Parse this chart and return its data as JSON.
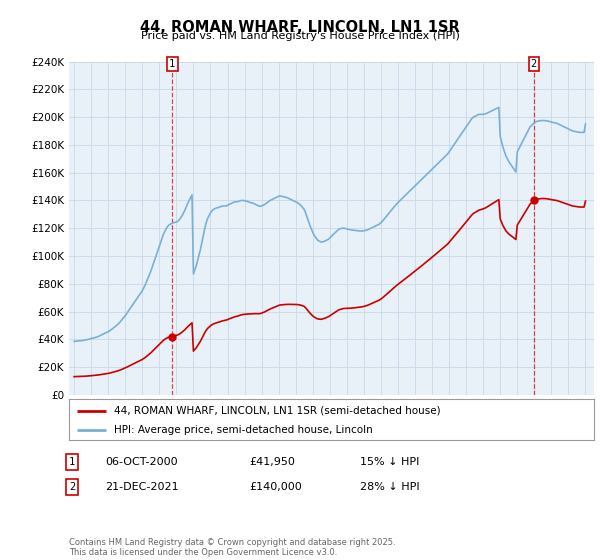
{
  "title": "44, ROMAN WHARF, LINCOLN, LN1 1SR",
  "subtitle": "Price paid vs. HM Land Registry's House Price Index (HPI)",
  "background_color": "#ffffff",
  "grid_color": "#c8d8e8",
  "plot_bg": "#e8f0f8",
  "ylim": [
    0,
    240000
  ],
  "yticks": [
    0,
    20000,
    40000,
    60000,
    80000,
    100000,
    120000,
    140000,
    160000,
    180000,
    200000,
    220000,
    240000
  ],
  "ytick_labels": [
    "£0",
    "£20K",
    "£40K",
    "£60K",
    "£80K",
    "£100K",
    "£120K",
    "£140K",
    "£160K",
    "£180K",
    "£200K",
    "£220K",
    "£240K"
  ],
  "sale1_price": 41950,
  "sale1_year": 2000.76,
  "sale2_price": 140000,
  "sale2_year": 2021.97,
  "legend_line1": "44, ROMAN WHARF, LINCOLN, LN1 1SR (semi-detached house)",
  "legend_line2": "HPI: Average price, semi-detached house, Lincoln",
  "footer": "Contains HM Land Registry data © Crown copyright and database right 2025.\nThis data is licensed under the Open Government Licence v3.0.",
  "hpi_years": [
    1995.0,
    1995.083,
    1995.167,
    1995.25,
    1995.333,
    1995.417,
    1995.5,
    1995.583,
    1995.667,
    1995.75,
    1995.833,
    1995.917,
    1996.0,
    1996.083,
    1996.167,
    1996.25,
    1996.333,
    1996.417,
    1996.5,
    1996.583,
    1996.667,
    1996.75,
    1996.833,
    1996.917,
    1997.0,
    1997.083,
    1997.167,
    1997.25,
    1997.333,
    1997.417,
    1997.5,
    1997.583,
    1997.667,
    1997.75,
    1997.833,
    1997.917,
    1998.0,
    1998.083,
    1998.167,
    1998.25,
    1998.333,
    1998.417,
    1998.5,
    1998.583,
    1998.667,
    1998.75,
    1998.833,
    1998.917,
    1999.0,
    1999.083,
    1999.167,
    1999.25,
    1999.333,
    1999.417,
    1999.5,
    1999.583,
    1999.667,
    1999.75,
    1999.833,
    1999.917,
    2000.0,
    2000.083,
    2000.167,
    2000.25,
    2000.333,
    2000.417,
    2000.5,
    2000.583,
    2000.667,
    2000.75,
    2000.833,
    2000.917,
    2001.0,
    2001.083,
    2001.167,
    2001.25,
    2001.333,
    2001.417,
    2001.5,
    2001.583,
    2001.667,
    2001.75,
    2001.833,
    2001.917,
    2002.0,
    2002.083,
    2002.167,
    2002.25,
    2002.333,
    2002.417,
    2002.5,
    2002.583,
    2002.667,
    2002.75,
    2002.833,
    2002.917,
    2003.0,
    2003.083,
    2003.167,
    2003.25,
    2003.333,
    2003.417,
    2003.5,
    2003.583,
    2003.667,
    2003.75,
    2003.833,
    2003.917,
    2004.0,
    2004.083,
    2004.167,
    2004.25,
    2004.333,
    2004.417,
    2004.5,
    2004.583,
    2004.667,
    2004.75,
    2004.833,
    2004.917,
    2005.0,
    2005.083,
    2005.167,
    2005.25,
    2005.333,
    2005.417,
    2005.5,
    2005.583,
    2005.667,
    2005.75,
    2005.833,
    2005.917,
    2006.0,
    2006.083,
    2006.167,
    2006.25,
    2006.333,
    2006.417,
    2006.5,
    2006.583,
    2006.667,
    2006.75,
    2006.833,
    2006.917,
    2007.0,
    2007.083,
    2007.167,
    2007.25,
    2007.333,
    2007.417,
    2007.5,
    2007.583,
    2007.667,
    2007.75,
    2007.833,
    2007.917,
    2008.0,
    2008.083,
    2008.167,
    2008.25,
    2008.333,
    2008.417,
    2008.5,
    2008.583,
    2008.667,
    2008.75,
    2008.833,
    2008.917,
    2009.0,
    2009.083,
    2009.167,
    2009.25,
    2009.333,
    2009.417,
    2009.5,
    2009.583,
    2009.667,
    2009.75,
    2009.833,
    2009.917,
    2010.0,
    2010.083,
    2010.167,
    2010.25,
    2010.333,
    2010.417,
    2010.5,
    2010.583,
    2010.667,
    2010.75,
    2010.833,
    2010.917,
    2011.0,
    2011.083,
    2011.167,
    2011.25,
    2011.333,
    2011.417,
    2011.5,
    2011.583,
    2011.667,
    2011.75,
    2011.833,
    2011.917,
    2012.0,
    2012.083,
    2012.167,
    2012.25,
    2012.333,
    2012.417,
    2012.5,
    2012.583,
    2012.667,
    2012.75,
    2012.833,
    2012.917,
    2013.0,
    2013.083,
    2013.167,
    2013.25,
    2013.333,
    2013.417,
    2013.5,
    2013.583,
    2013.667,
    2013.75,
    2013.833,
    2013.917,
    2014.0,
    2014.083,
    2014.167,
    2014.25,
    2014.333,
    2014.417,
    2014.5,
    2014.583,
    2014.667,
    2014.75,
    2014.833,
    2014.917,
    2015.0,
    2015.083,
    2015.167,
    2015.25,
    2015.333,
    2015.417,
    2015.5,
    2015.583,
    2015.667,
    2015.75,
    2015.833,
    2015.917,
    2016.0,
    2016.083,
    2016.167,
    2016.25,
    2016.333,
    2016.417,
    2016.5,
    2016.583,
    2016.667,
    2016.75,
    2016.833,
    2016.917,
    2017.0,
    2017.083,
    2017.167,
    2017.25,
    2017.333,
    2017.417,
    2017.5,
    2017.583,
    2017.667,
    2017.75,
    2017.833,
    2017.917,
    2018.0,
    2018.083,
    2018.167,
    2018.25,
    2018.333,
    2018.417,
    2018.5,
    2018.583,
    2018.667,
    2018.75,
    2018.833,
    2018.917,
    2019.0,
    2019.083,
    2019.167,
    2019.25,
    2019.333,
    2019.417,
    2019.5,
    2019.583,
    2019.667,
    2019.75,
    2019.833,
    2019.917,
    2020.0,
    2020.083,
    2020.167,
    2020.25,
    2020.333,
    2020.417,
    2020.5,
    2020.583,
    2020.667,
    2020.75,
    2020.833,
    2020.917,
    2021.0,
    2021.083,
    2021.167,
    2021.25,
    2021.333,
    2021.417,
    2021.5,
    2021.583,
    2021.667,
    2021.75,
    2021.833,
    2021.917,
    2022.0,
    2022.083,
    2022.167,
    2022.25,
    2022.333,
    2022.417,
    2022.5,
    2022.583,
    2022.667,
    2022.75,
    2022.833,
    2022.917,
    2023.0,
    2023.083,
    2023.167,
    2023.25,
    2023.333,
    2023.417,
    2023.5,
    2023.583,
    2023.667,
    2023.75,
    2023.833,
    2023.917,
    2024.0,
    2024.083,
    2024.167,
    2024.25,
    2024.333,
    2024.417,
    2024.5,
    2024.583,
    2024.667,
    2024.75,
    2024.833,
    2024.917,
    2025.0
  ],
  "hpi_values": [
    38500,
    38600,
    38700,
    38800,
    38900,
    39000,
    39100,
    39300,
    39500,
    39700,
    40000,
    40200,
    40500,
    40800,
    41000,
    41300,
    41600,
    42000,
    42500,
    43000,
    43500,
    44000,
    44500,
    45000,
    45500,
    46000,
    46800,
    47500,
    48300,
    49200,
    50000,
    51000,
    52000,
    53200,
    54500,
    55800,
    57000,
    58500,
    60000,
    61500,
    63000,
    64500,
    66000,
    67500,
    69000,
    70500,
    72000,
    73500,
    75000,
    77000,
    79000,
    81500,
    84000,
    86500,
    89000,
    92000,
    95000,
    98000,
    101000,
    104000,
    107000,
    110000,
    113000,
    116000,
    118000,
    120000,
    121500,
    122500,
    123000,
    123500,
    124000,
    124200,
    124500,
    125000,
    126000,
    127500,
    129000,
    131000,
    133000,
    135500,
    138000,
    140000,
    142000,
    144000,
    87000,
    90000,
    93000,
    97000,
    101000,
    105000,
    110000,
    115000,
    120000,
    124000,
    127000,
    129000,
    131000,
    132500,
    133500,
    134000,
    134500,
    134800,
    135000,
    135500,
    135800,
    136000,
    136000,
    136000,
    136500,
    137000,
    137500,
    138000,
    138500,
    139000,
    139000,
    139000,
    139500,
    139800,
    140000,
    140000,
    139800,
    139600,
    139200,
    139000,
    138500,
    138200,
    138000,
    137500,
    137000,
    136500,
    136000,
    135800,
    136000,
    136500,
    137000,
    137800,
    138500,
    139200,
    140000,
    140500,
    141000,
    141500,
    142000,
    142500,
    143000,
    143200,
    143000,
    142800,
    142500,
    142200,
    142000,
    141500,
    141000,
    140500,
    140000,
    139500,
    139000,
    138500,
    137800,
    137000,
    136000,
    134800,
    133500,
    131000,
    128000,
    125000,
    122000,
    119500,
    117000,
    115000,
    113500,
    112000,
    111000,
    110500,
    110000,
    110200,
    110500,
    111000,
    111500,
    112000,
    113000,
    114000,
    115000,
    116000,
    117000,
    118000,
    119000,
    119500,
    119800,
    120000,
    120000,
    119800,
    119500,
    119200,
    119000,
    118800,
    118600,
    118500,
    118400,
    118300,
    118200,
    118000,
    118000,
    118000,
    118200,
    118400,
    118600,
    119000,
    119500,
    120000,
    120500,
    121000,
    121500,
    122000,
    122500,
    123000,
    124000,
    125000,
    126200,
    127500,
    128800,
    130000,
    131200,
    132500,
    133800,
    135000,
    136200,
    137500,
    138500,
    139500,
    140500,
    141500,
    142500,
    143500,
    144500,
    145500,
    146500,
    147500,
    148500,
    149500,
    150500,
    151500,
    152500,
    153500,
    154500,
    155500,
    156500,
    157500,
    158500,
    159500,
    160500,
    161500,
    162500,
    163500,
    164500,
    165500,
    166500,
    167500,
    168500,
    169500,
    170500,
    171500,
    172500,
    173500,
    175000,
    176500,
    178000,
    179500,
    181000,
    182500,
    184000,
    185500,
    187000,
    188500,
    190000,
    191500,
    193000,
    194500,
    196000,
    197500,
    199000,
    200000,
    200500,
    201000,
    201500,
    202000,
    202000,
    202000,
    202000,
    202200,
    202500,
    203000,
    203500,
    204000,
    204500,
    205000,
    205500,
    206000,
    206500,
    207000,
    186000,
    182000,
    178000,
    175000,
    172000,
    170000,
    168000,
    166500,
    165000,
    163500,
    162000,
    160500,
    175000,
    177000,
    179000,
    181000,
    183000,
    185000,
    187000,
    189000,
    191000,
    193000,
    194000,
    195000,
    196000,
    196500,
    197000,
    197200,
    197400,
    197500,
    197600,
    197500,
    197400,
    197300,
    197000,
    196800,
    196500,
    196200,
    196000,
    195800,
    195500,
    195000,
    194500,
    194000,
    193500,
    193000,
    192500,
    192000,
    191500,
    191000,
    190500,
    190000,
    189800,
    189600,
    189400,
    189200,
    189000,
    189000,
    189000,
    189000,
    195000
  ],
  "red_color": "#cc0000",
  "blue_color": "#7ab0d4"
}
